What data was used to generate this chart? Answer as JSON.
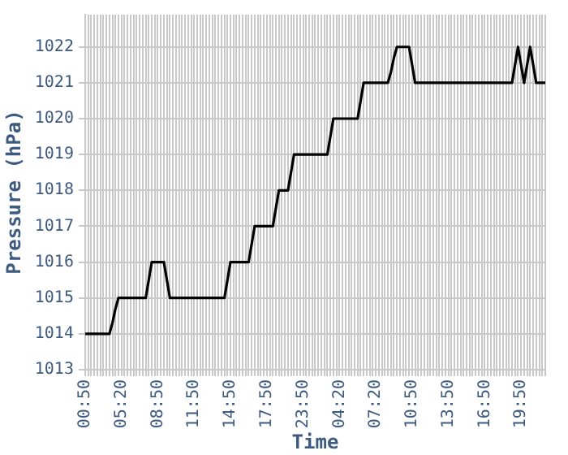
{
  "chart_data": {
    "type": "line",
    "xlabel": "Time",
    "ylabel": "Pressure (hPa)",
    "categories": [
      "00:50",
      null,
      null,
      null,
      null,
      null,
      null,
      null,
      null,
      null,
      null,
      null,
      "05:20",
      null,
      null,
      null,
      null,
      null,
      null,
      null,
      null,
      null,
      null,
      null,
      "08:50",
      null,
      null,
      null,
      null,
      null,
      null,
      null,
      null,
      null,
      null,
      null,
      "11:50",
      null,
      null,
      null,
      null,
      null,
      null,
      null,
      null,
      null,
      null,
      null,
      "14:50",
      null,
      null,
      null,
      null,
      null,
      null,
      null,
      null,
      null,
      null,
      null,
      "17:50",
      null,
      null,
      null,
      null,
      null,
      null,
      null,
      null,
      null,
      null,
      null,
      "23:50",
      null,
      null,
      null,
      null,
      null,
      null,
      null,
      null,
      null,
      null,
      null,
      "04:20",
      null,
      null,
      null,
      null,
      null,
      null,
      null,
      null,
      null,
      null,
      null,
      "07:20",
      null,
      null,
      null,
      null,
      null,
      null,
      null,
      null,
      null,
      null,
      null,
      "10:50",
      null,
      null,
      null,
      null,
      null,
      null,
      null,
      null,
      null,
      null,
      null,
      "13:50",
      null,
      null,
      null,
      null,
      null,
      null,
      null,
      null,
      null,
      null,
      null,
      "16:50",
      null,
      null,
      null,
      null,
      null,
      null,
      null,
      null,
      null,
      null,
      null,
      "19:50",
      null,
      null,
      null,
      null,
      null,
      null,
      null,
      null
    ],
    "series": [
      {
        "color": "#000000",
        "values": [
          1014,
          1014,
          1014,
          1014,
          1014,
          1014,
          1014,
          1014,
          1014,
          1014.3,
          1014.7,
          1015,
          1015,
          1015,
          1015,
          1015,
          1015,
          1015,
          1015,
          1015,
          1015,
          1015.5,
          1016,
          1016,
          1016,
          1016,
          1016,
          1015.5,
          1015,
          1015,
          1015,
          1015,
          1015,
          1015,
          1015,
          1015,
          1015,
          1015,
          1015,
          1015,
          1015,
          1015,
          1015,
          1015,
          1015,
          1015,
          1015,
          1015.5,
          1016,
          1016,
          1016,
          1016,
          1016,
          1016,
          1016,
          1016.5,
          1017,
          1017,
          1017,
          1017,
          1017,
          1017,
          1017,
          1017.5,
          1018,
          1018,
          1018,
          1018,
          1018.5,
          1019,
          1019,
          1019,
          1019,
          1019,
          1019,
          1019,
          1019,
          1019,
          1019,
          1019,
          1019,
          1019.5,
          1020,
          1020,
          1020,
          1020,
          1020,
          1020,
          1020,
          1020,
          1020,
          1020.5,
          1021,
          1021,
          1021,
          1021,
          1021,
          1021,
          1021,
          1021,
          1021,
          1021.3,
          1021.7,
          1022,
          1022,
          1022,
          1022,
          1022,
          1021.5,
          1021,
          1021,
          1021,
          1021,
          1021,
          1021,
          1021,
          1021,
          1021,
          1021,
          1021,
          1021,
          1021,
          1021,
          1021,
          1021,
          1021,
          1021,
          1021,
          1021,
          1021,
          1021,
          1021,
          1021,
          1021,
          1021,
          1021,
          1021,
          1021,
          1021,
          1021,
          1021,
          1021,
          1021.5,
          1022,
          1021.5,
          1021,
          1021.5,
          1022,
          1021.5,
          1021,
          1021,
          1021,
          1021
        ]
      }
    ],
    "ylim": [
      1013,
      1022.9
    ],
    "yticks": [
      1013,
      1014,
      1015,
      1016,
      1017,
      1018,
      1019,
      1020,
      1021,
      1022
    ],
    "grid": true,
    "legend": false,
    "marker": "none",
    "line_style": "solid"
  }
}
